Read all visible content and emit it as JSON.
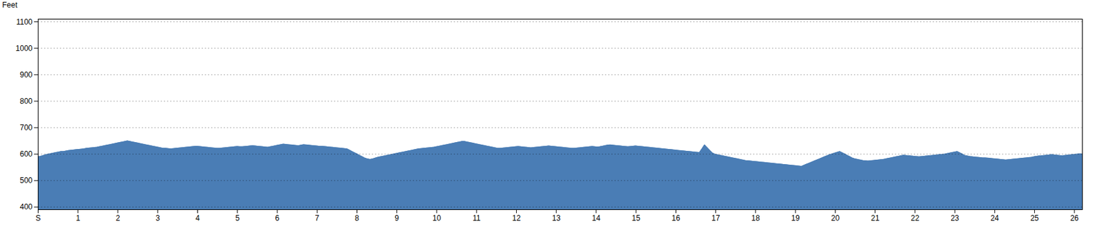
{
  "chart_data": {
    "type": "area",
    "ylabel": "Feet",
    "color": "#4a7db5",
    "xlim": [
      0,
      26.2
    ],
    "xticks": [
      {
        "value": 0,
        "label": "S"
      },
      1,
      2,
      3,
      4,
      5,
      6,
      7,
      8,
      9,
      10,
      11,
      12,
      13,
      14,
      15,
      16,
      17,
      18,
      19,
      20,
      21,
      22,
      23,
      24,
      25,
      26
    ],
    "ylim": [
      390,
      1110
    ],
    "yticks": [
      400,
      500,
      600,
      700,
      800,
      900,
      1000,
      1100
    ],
    "grid": true,
    "x": [
      0,
      0.0641,
      0.1281,
      0.1922,
      0.2562,
      0.3203,
      0.3844,
      0.4484,
      0.5125,
      0.5765,
      0.6406,
      0.7046,
      0.7687,
      0.8328,
      0.8968,
      0.9609,
      1.0249,
      1.089,
      1.1531,
      1.2171,
      1.2812,
      1.3452,
      1.4093,
      1.4733,
      1.5374,
      1.6015,
      1.6655,
      1.7296,
      1.7936,
      1.8577,
      1.9218,
      1.9858,
      2.0499,
      2.1139,
      2.178,
      2.2421,
      2.3061,
      2.3702,
      2.4342,
      2.4983,
      2.5623,
      2.6264,
      2.6905,
      2.7545,
      2.8186,
      2.8826,
      2.9467,
      3.0108,
      3.0748,
      3.1389,
      3.2029,
      3.267,
      3.3311,
      3.3951,
      3.4592,
      3.5232,
      3.5873,
      3.6513,
      3.7154,
      3.7795,
      3.8435,
      3.9076,
      3.9716,
      4.0357,
      4.0998,
      4.1638,
      4.2279,
      4.2919,
      4.356,
      4.42,
      4.4841,
      4.5482,
      4.6122,
      4.6763,
      4.7403,
      4.8044,
      4.8685,
      4.9325,
      4.9966,
      5.0606,
      5.1247,
      5.1888,
      5.2528,
      5.3169,
      5.3809,
      5.445,
      5.509,
      5.5731,
      5.6372,
      5.7012,
      5.7653,
      5.8293,
      5.8934,
      5.9575,
      6.0215,
      6.0856,
      6.1496,
      6.2137,
      6.2778,
      6.3418,
      6.4059,
      6.4699,
      6.534,
      6.598,
      6.6621,
      6.7262,
      6.7902,
      6.8543,
      6.9183,
      6.9824,
      7.0465,
      7.1105,
      7.1746,
      7.2386,
      7.3027,
      7.3667,
      7.4308,
      7.4949,
      7.5589,
      7.623,
      7.687,
      7.7511,
      7.8152,
      7.8792,
      7.9433,
      8.0073,
      8.0714,
      8.1355,
      8.1995,
      8.2636,
      8.3276,
      8.3917,
      8.4557,
      8.5198,
      8.5839,
      8.6479,
      8.712,
      8.776,
      8.8401,
      8.9042,
      8.9682,
      9.0323,
      9.0963,
      9.1604,
      9.2244,
      9.2885,
      9.3526,
      9.4166,
      9.4807,
      9.5447,
      9.6088,
      9.6729,
      9.7369,
      9.801,
      9.865,
      9.9291,
      9.9932,
      10.0572,
      10.1213,
      10.1853,
      10.2494,
      10.3134,
      10.3775,
      10.4416,
      10.5056,
      10.5697,
      10.6337,
      10.6978,
      10.7619,
      10.8259,
      10.89,
      10.954,
      11.0181,
      11.0822,
      11.1462,
      11.2103,
      11.2743,
      11.3384,
      11.4024,
      11.4665,
      11.5306,
      11.5946,
      11.6587,
      11.7227,
      11.7868,
      11.8509,
      11.9149,
      11.979,
      12.043,
      12.1071,
      12.1711,
      12.2352,
      12.2993,
      12.3633,
      12.4274,
      12.4914,
      12.5555,
      12.6196,
      12.6836,
      12.7477,
      12.8117,
      12.8758,
      12.9399,
      13.0039,
      13.068,
      13.132,
      13.1961,
      13.2601,
      13.3242,
      13.3883,
      13.4523,
      13.5164,
      13.5804,
      13.6445,
      13.7086,
      13.7726,
      13.8367,
      13.9007,
      13.9648,
      14.0289,
      14.0929,
      14.157,
      14.221,
      14.2851,
      14.3491,
      14.4132,
      14.4773,
      14.5413,
      14.6054,
      14.6694,
      14.7335,
      14.7976,
      14.8616,
      14.9257,
      14.9897,
      15.0538,
      15.1178,
      15.1819,
      15.246,
      15.31,
      15.3741,
      15.4381,
      15.5022,
      15.5663,
      15.6303,
      15.6944,
      15.7584,
      15.8225,
      15.8866,
      15.9506,
      16.0147,
      16.0787,
      16.1428,
      16.2068,
      16.2709,
      16.335,
      16.399,
      16.4631,
      16.5271,
      16.5912,
      16.6553,
      16.7193,
      16.7834,
      16.8474,
      16.9115,
      16.9756,
      17.0396,
      17.1037,
      17.1677,
      17.2318,
      17.2958,
      17.3599,
      17.424,
      17.488,
      17.5521,
      17.6161,
      17.6802,
      17.7443,
      17.8083,
      17.8724,
      17.9364,
      18.0005,
      18.0645,
      18.1286,
      18.1927,
      18.2567,
      18.3208,
      18.3848,
      18.4489,
      18.513,
      18.577,
      18.6411,
      18.7051,
      18.7692,
      18.8333,
      18.8973,
      18.9614,
      19.0254,
      19.0895,
      19.1535,
      19.2176,
      19.2817,
      19.3457,
      19.4098,
      19.4738,
      19.5379,
      19.602,
      19.666,
      19.7301,
      19.7941,
      19.8582,
      19.9222,
      19.9863,
      20.0504,
      20.1144,
      20.1785,
      20.2425,
      20.3066,
      20.3707,
      20.4347,
      20.4988,
      20.5628,
      20.6269,
      20.691,
      20.755,
      20.8191,
      20.8831,
      20.9472,
      21.0112,
      21.0753,
      21.1394,
      21.2034,
      21.2675,
      21.3315,
      21.3956,
      21.4597,
      21.5237,
      21.5878,
      21.6518,
      21.7159,
      21.78,
      21.844,
      21.9081,
      21.9721,
      22.0362,
      22.1002,
      22.1643,
      22.2284,
      22.2924,
      22.3565,
      22.4205,
      22.4846,
      22.5487,
      22.6127,
      22.6768,
      22.7408,
      22.8049,
      22.8689,
      22.933,
      22.9971,
      23.0611,
      23.1252,
      23.1892,
      23.2533,
      23.3174,
      23.3814,
      23.4455,
      23.5095,
      23.5736,
      23.6377,
      23.7017,
      23.7658,
      23.8298,
      23.8939,
      23.9579,
      24.022,
      24.0861,
      24.1501,
      24.2142,
      24.2782,
      24.3423,
      24.4064,
      24.4704,
      24.5345,
      24.5985,
      24.6626,
      24.7267,
      24.7907,
      24.8548,
      24.9188,
      24.9829,
      25.0469,
      25.111,
      25.1751,
      25.2391,
      25.3032,
      25.3672,
      25.4313,
      25.4954,
      25.5594,
      25.6235,
      25.6875,
      25.7516,
      25.8156,
      25.8797,
      25.9438,
      26.0078,
      26.0719,
      26.1359,
      26.2
    ],
    "values": [
      590,
      592,
      595,
      598,
      600,
      602,
      604,
      606,
      608,
      610,
      610,
      612,
      614,
      615,
      616,
      617,
      618,
      619,
      620,
      622,
      623,
      624,
      625,
      626,
      628,
      630,
      632,
      634,
      636,
      638,
      640,
      642,
      644,
      646,
      648,
      650,
      648,
      646,
      644,
      642,
      640,
      638,
      636,
      634,
      632,
      630,
      628,
      626,
      624,
      622,
      622,
      621,
      620,
      621,
      622,
      623,
      624,
      625,
      626,
      627,
      628,
      629,
      630,
      629,
      628,
      627,
      626,
      625,
      624,
      623,
      622,
      622,
      623,
      624,
      625,
      626,
      627,
      628,
      629,
      628,
      628,
      629,
      630,
      631,
      632,
      631,
      630,
      629,
      628,
      627,
      626,
      628,
      630,
      632,
      634,
      636,
      638,
      637,
      636,
      635,
      634,
      633,
      632,
      634,
      636,
      635,
      634,
      633,
      632,
      631,
      630,
      630,
      629,
      628,
      627,
      626,
      625,
      624,
      623,
      622,
      621,
      620,
      615,
      610,
      605,
      600,
      595,
      590,
      585,
      582,
      580,
      582,
      585,
      588,
      590,
      592,
      594,
      596,
      598,
      600,
      602,
      604,
      606,
      608,
      610,
      612,
      614,
      616,
      618,
      620,
      621,
      622,
      623,
      624,
      625,
      626,
      628,
      630,
      632,
      634,
      636,
      638,
      640,
      642,
      644,
      646,
      648,
      648,
      646,
      644,
      642,
      640,
      638,
      636,
      634,
      632,
      630,
      628,
      626,
      624,
      622,
      622,
      623,
      624,
      625,
      626,
      627,
      628,
      629,
      628,
      627,
      626,
      625,
      624,
      625,
      626,
      627,
      628,
      629,
      630,
      631,
      630,
      629,
      628,
      627,
      626,
      625,
      624,
      623,
      622,
      622,
      623,
      624,
      625,
      626,
      627,
      628,
      629,
      628,
      627,
      628,
      630,
      632,
      634,
      635,
      634,
      633,
      632,
      631,
      630,
      629,
      628,
      629,
      630,
      631,
      630,
      629,
      628,
      627,
      626,
      625,
      624,
      623,
      622,
      621,
      620,
      619,
      618,
      617,
      616,
      615,
      614,
      613,
      612,
      611,
      610,
      609,
      608,
      607,
      606,
      620,
      635,
      625,
      615,
      605,
      600,
      598,
      596,
      594,
      592,
      590,
      588,
      586,
      584,
      582,
      580,
      578,
      576,
      575,
      574,
      573,
      572,
      571,
      570,
      569,
      568,
      567,
      566,
      565,
      564,
      563,
      562,
      561,
      560,
      559,
      558,
      557,
      556,
      555,
      554,
      558,
      562,
      566,
      570,
      574,
      578,
      582,
      586,
      590,
      594,
      598,
      601,
      604,
      607,
      610,
      605,
      600,
      595,
      590,
      585,
      582,
      580,
      578,
      576,
      575,
      574,
      575,
      576,
      577,
      578,
      579,
      580,
      582,
      584,
      586,
      588,
      590,
      592,
      594,
      596,
      595,
      594,
      593,
      592,
      591,
      590,
      591,
      592,
      593,
      594,
      595,
      596,
      597,
      598,
      599,
      600,
      602,
      604,
      606,
      608,
      610,
      605,
      600,
      595,
      593,
      591,
      590,
      589,
      588,
      587,
      586,
      586,
      585,
      584,
      583,
      582,
      581,
      580,
      579,
      578,
      579,
      580,
      581,
      582,
      583,
      584,
      585,
      586,
      587,
      588,
      590,
      592,
      593,
      594,
      595,
      596,
      597,
      598,
      597,
      596,
      595,
      594,
      595,
      596,
      597,
      598,
      599,
      600,
      601,
      600
    ]
  }
}
